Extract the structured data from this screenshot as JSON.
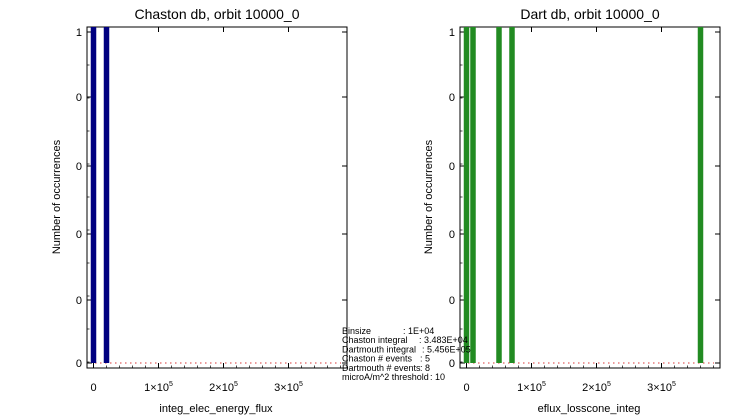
{
  "chart_data": [
    {
      "type": "bar",
      "title": "Chaston db, orbit 10000_0",
      "xlabel": "integ_elec_energy_flux",
      "ylabel": "Number of occurrences",
      "color": "#000080",
      "ytick_labels": [
        "1",
        "0",
        "0",
        "0",
        "0",
        "0"
      ],
      "xtick_labels": [
        "0",
        "1×10",
        "2×10",
        "3×10"
      ],
      "xtick_exponent": "5",
      "x_range": [
        -10000,
        390000
      ],
      "y_range": [
        0,
        1
      ],
      "binsize": 10000,
      "x": [
        0,
        10000,
        20000
      ],
      "values": [
        1,
        0,
        1
      ]
    },
    {
      "type": "bar",
      "title": "Dart db, orbit 10000_0",
      "xlabel": "eflux_losscone_integ",
      "ylabel": "Number of occurrences",
      "color": "#228b22",
      "ytick_labels": [
        "1",
        "0",
        "0",
        "0",
        "0",
        "0"
      ],
      "xtick_labels": [
        "0",
        "1×10",
        "2×10",
        "3×10"
      ],
      "xtick_exponent": "5",
      "x_range": [
        -10000,
        390000
      ],
      "y_range": [
        0,
        1
      ],
      "binsize": 10000,
      "x": [
        0,
        10000,
        20000,
        50000,
        60000,
        70000,
        360000
      ],
      "values": [
        1,
        1,
        0,
        1,
        0,
        1,
        1
      ]
    }
  ],
  "stats": [
    {
      "label": "Binsize",
      "value": ": 1E+04"
    },
    {
      "label": "Chaston integral",
      "value": ": 3.483E+04"
    },
    {
      "label": "Dartmouth integral",
      "value": ": 5.456E+05"
    },
    {
      "label": "Chaston # events",
      "value": ": 5"
    },
    {
      "label": "Dartmouth # events",
      "value": ": 8"
    },
    {
      "label": "microA/m^2 threshold",
      "value": ": 10"
    }
  ]
}
